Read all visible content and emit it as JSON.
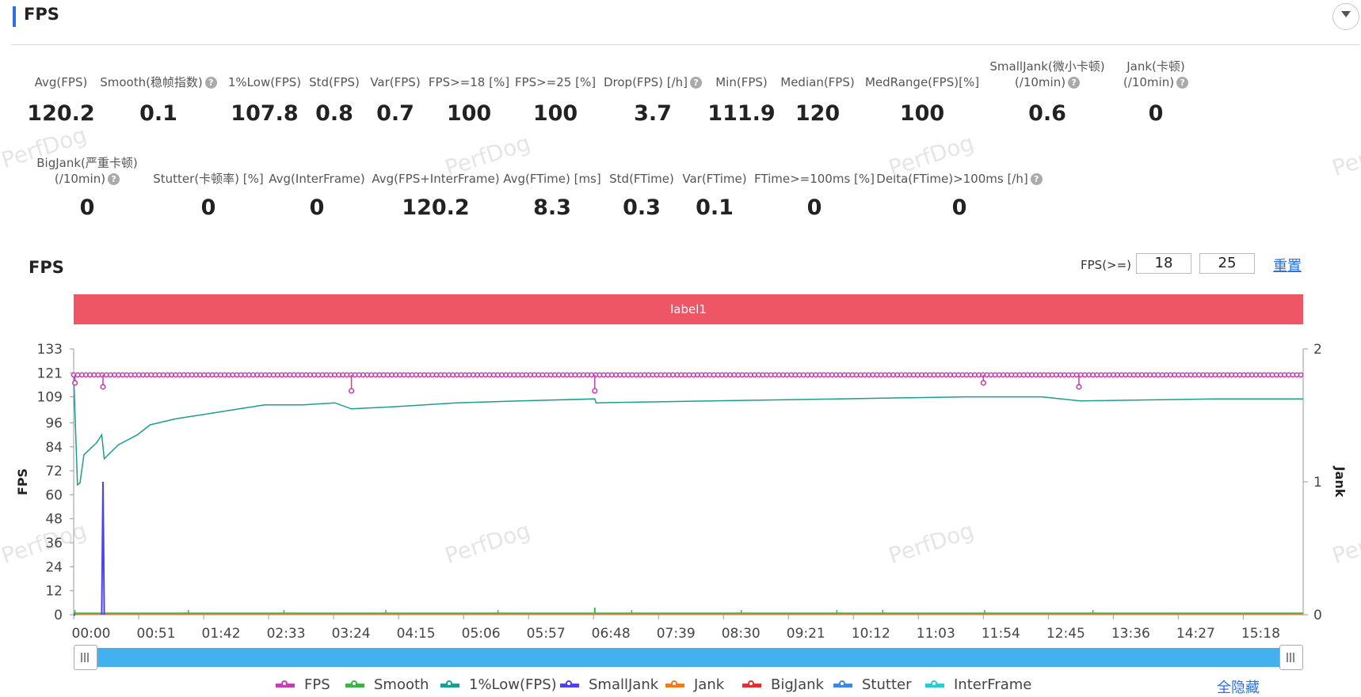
{
  "header": {
    "title": "FPS"
  },
  "stats_row1": [
    {
      "label": "Avg(FPS)",
      "value": "120.2",
      "help": false
    },
    {
      "label": "Smooth(稳帧指数)",
      "value": "0.1",
      "help": true
    },
    {
      "label": "1%Low(FPS)",
      "value": "107.8",
      "help": false
    },
    {
      "label": "Std(FPS)",
      "value": "0.8",
      "help": false
    },
    {
      "label": "Var(FPS)",
      "value": "0.7",
      "help": false
    },
    {
      "label": "FPS>=18 [%]",
      "value": "100",
      "help": false
    },
    {
      "label": "FPS>=25 [%]",
      "value": "100",
      "help": false
    },
    {
      "label": "Drop(FPS) [/h]",
      "value": "3.7",
      "help": true
    },
    {
      "label": "Min(FPS)",
      "value": "111.9",
      "help": false
    },
    {
      "label": "Median(FPS)",
      "value": "120",
      "help": false
    },
    {
      "label": "MedRange(FPS)[%]",
      "value": "100",
      "help": false
    },
    {
      "label": "SmallJank(微小卡顿)",
      "label2": "(/10min)",
      "value": "0.6",
      "help": true
    },
    {
      "label": "Jank(卡顿)",
      "label2": "(/10min)",
      "value": "0",
      "help": true
    }
  ],
  "stats_row2": [
    {
      "label": "BigJank(严重卡顿)",
      "label2": "(/10min)",
      "value": "0",
      "help": true
    },
    {
      "label": "Stutter(卡顿率) [%]",
      "value": "0",
      "help": false
    },
    {
      "label": "Avg(InterFrame)",
      "value": "0",
      "help": false
    },
    {
      "label": "Avg(FPS+InterFrame)",
      "value": "120.2",
      "help": false
    },
    {
      "label": "Avg(FTime) [ms]",
      "value": "8.3",
      "help": false
    },
    {
      "label": "Std(FTime)",
      "value": "0.3",
      "help": false
    },
    {
      "label": "Var(FTime)",
      "value": "0.1",
      "help": false
    },
    {
      "label": "FTime>=100ms [%]",
      "value": "0",
      "help": false
    },
    {
      "label": "Delta(FTime)>100ms [/h]",
      "value": "0",
      "help": true
    }
  ],
  "help_glyph": "?",
  "chart_header": {
    "title": "FPS",
    "threshold_label": "FPS(>=)",
    "threshold1": "18",
    "threshold2": "25",
    "reset_label": "重置"
  },
  "label_band": "label1",
  "watermark": "PerfDog",
  "legend": [
    {
      "name": "FPS",
      "color": "#c83cb4"
    },
    {
      "name": "Smooth",
      "color": "#3bb34a"
    },
    {
      "name": "1%Low(FPS)",
      "color": "#1a9e8f"
    },
    {
      "name": "SmallJank",
      "color": "#4c44e8"
    },
    {
      "name": "Jank",
      "color": "#f07c22"
    },
    {
      "name": "BigJank",
      "color": "#e03131"
    },
    {
      "name": "Stutter",
      "color": "#3f87e6"
    },
    {
      "name": "InterFrame",
      "color": "#2ec7d6"
    }
  ],
  "hide_all_label": "全隐藏",
  "chart_data": {
    "type": "line",
    "ylabel": "FPS",
    "y2label": "Jank",
    "y_ticks": [
      0,
      12,
      24,
      36,
      48,
      60,
      72,
      84,
      96,
      109,
      121,
      133
    ],
    "y2_ticks": [
      0,
      1,
      2
    ],
    "ylim": [
      0,
      133
    ],
    "y2lim": [
      0,
      2
    ],
    "x_ticks": [
      "00:00",
      "00:51",
      "01:42",
      "02:33",
      "03:24",
      "04:15",
      "05:06",
      "05:57",
      "06:48",
      "07:39",
      "08:30",
      "09:21",
      "10:12",
      "11:03",
      "11:54",
      "12:45",
      "13:36",
      "14:27",
      "15:18"
    ],
    "x_tick_seconds": [
      0,
      51,
      102,
      153,
      204,
      255,
      306,
      357,
      408,
      459,
      510,
      561,
      612,
      663,
      714,
      765,
      816,
      867,
      918
    ],
    "xlim_seconds": [
      0,
      965
    ],
    "series": [
      {
        "name": "FPS",
        "approx_value": 120,
        "dips": [
          [
            1,
            116
          ],
          [
            23,
            114
          ],
          [
            218,
            112
          ],
          [
            409,
            112
          ],
          [
            714,
            116
          ],
          [
            789,
            114
          ]
        ]
      },
      {
        "name": "1%Low(FPS)",
        "points": [
          [
            0,
            120
          ],
          [
            3,
            65
          ],
          [
            5,
            66
          ],
          [
            8,
            80
          ],
          [
            18,
            86
          ],
          [
            22,
            90
          ],
          [
            24,
            78
          ],
          [
            35,
            85
          ],
          [
            50,
            90
          ],
          [
            60,
            95
          ],
          [
            80,
            98
          ],
          [
            100,
            100
          ],
          [
            130,
            103
          ],
          [
            150,
            105
          ],
          [
            180,
            105
          ],
          [
            205,
            106
          ],
          [
            218,
            103
          ],
          [
            250,
            104
          ],
          [
            300,
            106
          ],
          [
            350,
            107
          ],
          [
            409,
            108
          ],
          [
            410,
            106
          ],
          [
            500,
            107
          ],
          [
            600,
            108
          ],
          [
            700,
            109
          ],
          [
            760,
            109
          ],
          [
            790,
            107
          ],
          [
            900,
            108
          ],
          [
            965,
            108
          ]
        ]
      },
      {
        "name": "SmallJank",
        "points": [
          [
            22,
            0
          ],
          [
            23,
            1
          ],
          [
            24,
            0
          ]
        ]
      }
    ]
  }
}
